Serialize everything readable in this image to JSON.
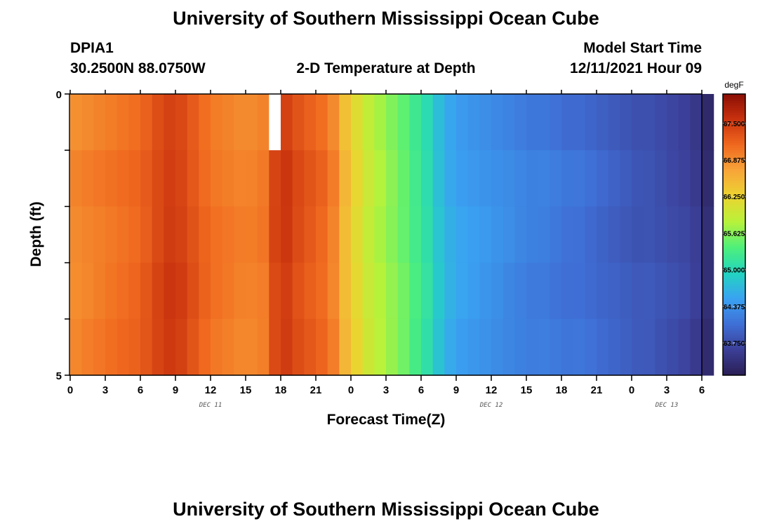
{
  "header": {
    "title": "University of Southern Mississippi Ocean Cube",
    "station": "DPIA1",
    "coords": "30.2500N  88.0750W",
    "subtitle": "2-D Temperature at Depth",
    "model_label": "Model Start Time",
    "model_time": "12/11/2021 Hour 09"
  },
  "footer": {
    "title": "University of Southern Mississippi Ocean Cube"
  },
  "chart_data": {
    "type": "heatmap",
    "title": "2-D Temperature at Depth",
    "xlabel": "Forecast Time(Z)",
    "ylabel": "Depth (ft)",
    "x_ticks": [
      "0",
      "3",
      "6",
      "9",
      "12",
      "15",
      "18",
      "21",
      "0",
      "3",
      "6",
      "9",
      "12",
      "15",
      "18",
      "21",
      "0",
      "3",
      "6"
    ],
    "date_labels": [
      {
        "text": "DEC 11",
        "hour_index": 12
      },
      {
        "text": "DEC 12",
        "hour_index": 36
      },
      {
        "text": "DEC 13",
        "hour_index": 51
      }
    ],
    "y_ticks": [
      "0",
      "5"
    ],
    "ylim": [
      0,
      5
    ],
    "xlim_hours": [
      0,
      54
    ],
    "depth_levels": 5,
    "colorbar": {
      "unit": "degF",
      "min": 63.2,
      "max": 68.0,
      "labels": [
        "67.500",
        "66.875",
        "66.250",
        "65.625",
        "65.000",
        "64.375",
        "63.750"
      ],
      "label_values": [
        67.5,
        66.875,
        66.25,
        65.625,
        65.0,
        64.375,
        63.75
      ],
      "colors": [
        "#2a1f55",
        "#3c3f98",
        "#3f6fd6",
        "#3aa2f2",
        "#22d5c0",
        "#4ff07a",
        "#b8f23a",
        "#ecd430",
        "#f8a53a",
        "#f0691f",
        "#c9320e",
        "#8a0e05"
      ]
    },
    "temperature_profile_by_hour": [
      66.9,
      66.95,
      67.0,
      67.05,
      67.1,
      67.15,
      67.25,
      67.4,
      67.5,
      67.45,
      67.3,
      67.15,
      67.05,
      67.0,
      66.95,
      66.95,
      67.0,
      67.4,
      67.5,
      67.35,
      67.25,
      67.15,
      66.95,
      66.5,
      66.2,
      65.95,
      65.8,
      65.65,
      65.5,
      65.3,
      65.1,
      64.8,
      64.6,
      64.5,
      64.45,
      64.4,
      64.35,
      64.3,
      64.25,
      64.2,
      64.2,
      64.15,
      64.1,
      64.1,
      64.05,
      64.0,
      63.95,
      63.9,
      63.85,
      63.85,
      63.8,
      63.75,
      63.7,
      63.6,
      63.4
    ],
    "missing_cells": [
      {
        "hour_index": 17,
        "layer": 0
      }
    ]
  }
}
